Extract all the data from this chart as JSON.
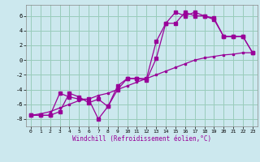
{
  "xlabel": "Windchill (Refroidissement éolien,°C)",
  "bg_color": "#cce8ee",
  "grid_color": "#99ccbb",
  "line_color": "#990099",
  "xlim": [
    -0.5,
    23.5
  ],
  "ylim": [
    -9,
    7.5
  ],
  "yticks": [
    -8,
    -6,
    -4,
    -2,
    0,
    2,
    4,
    6
  ],
  "xticks": [
    0,
    1,
    2,
    3,
    4,
    5,
    6,
    7,
    8,
    9,
    10,
    11,
    12,
    13,
    14,
    15,
    16,
    17,
    18,
    19,
    20,
    21,
    22,
    23
  ],
  "line1_x": [
    0,
    1,
    2,
    3,
    4,
    5,
    6,
    7,
    8,
    9,
    10,
    11,
    12,
    13,
    14,
    15,
    16,
    17,
    18,
    19,
    20,
    21,
    22,
    23
  ],
  "line1_y": [
    -7.5,
    -7.5,
    -7.5,
    -4.5,
    -5.0,
    -5.3,
    -5.3,
    -8.0,
    -6.3,
    -4.0,
    -2.5,
    -2.5,
    -2.5,
    2.5,
    5.0,
    6.5,
    6.0,
    6.5,
    6.0,
    5.5,
    3.2,
    3.2,
    3.2,
    1.0
  ],
  "line2_x": [
    0,
    1,
    2,
    3,
    4,
    5,
    6,
    7,
    8,
    9,
    10,
    11,
    12,
    13,
    14,
    15,
    16,
    17,
    18,
    19,
    20,
    21,
    22,
    23
  ],
  "line2_y": [
    -7.5,
    -7.5,
    -7.5,
    -7.0,
    -4.5,
    -5.0,
    -5.8,
    -5.3,
    -6.3,
    -3.5,
    -2.5,
    -2.5,
    -2.7,
    0.2,
    5.0,
    5.0,
    6.5,
    6.0,
    6.0,
    5.7,
    3.2,
    3.2,
    3.2,
    1.0
  ],
  "line3_x": [
    0,
    1,
    2,
    3,
    4,
    5,
    6,
    7,
    8,
    9,
    10,
    11,
    12,
    13,
    14,
    15,
    16,
    17,
    18,
    19,
    20,
    21,
    22,
    23
  ],
  "line3_y": [
    -7.5,
    -7.3,
    -7.0,
    -6.5,
    -6.0,
    -5.5,
    -5.3,
    -4.8,
    -4.5,
    -4.0,
    -3.5,
    -3.0,
    -2.5,
    -2.0,
    -1.5,
    -1.0,
    -0.5,
    0.0,
    0.3,
    0.5,
    0.7,
    0.8,
    1.0,
    1.0
  ]
}
